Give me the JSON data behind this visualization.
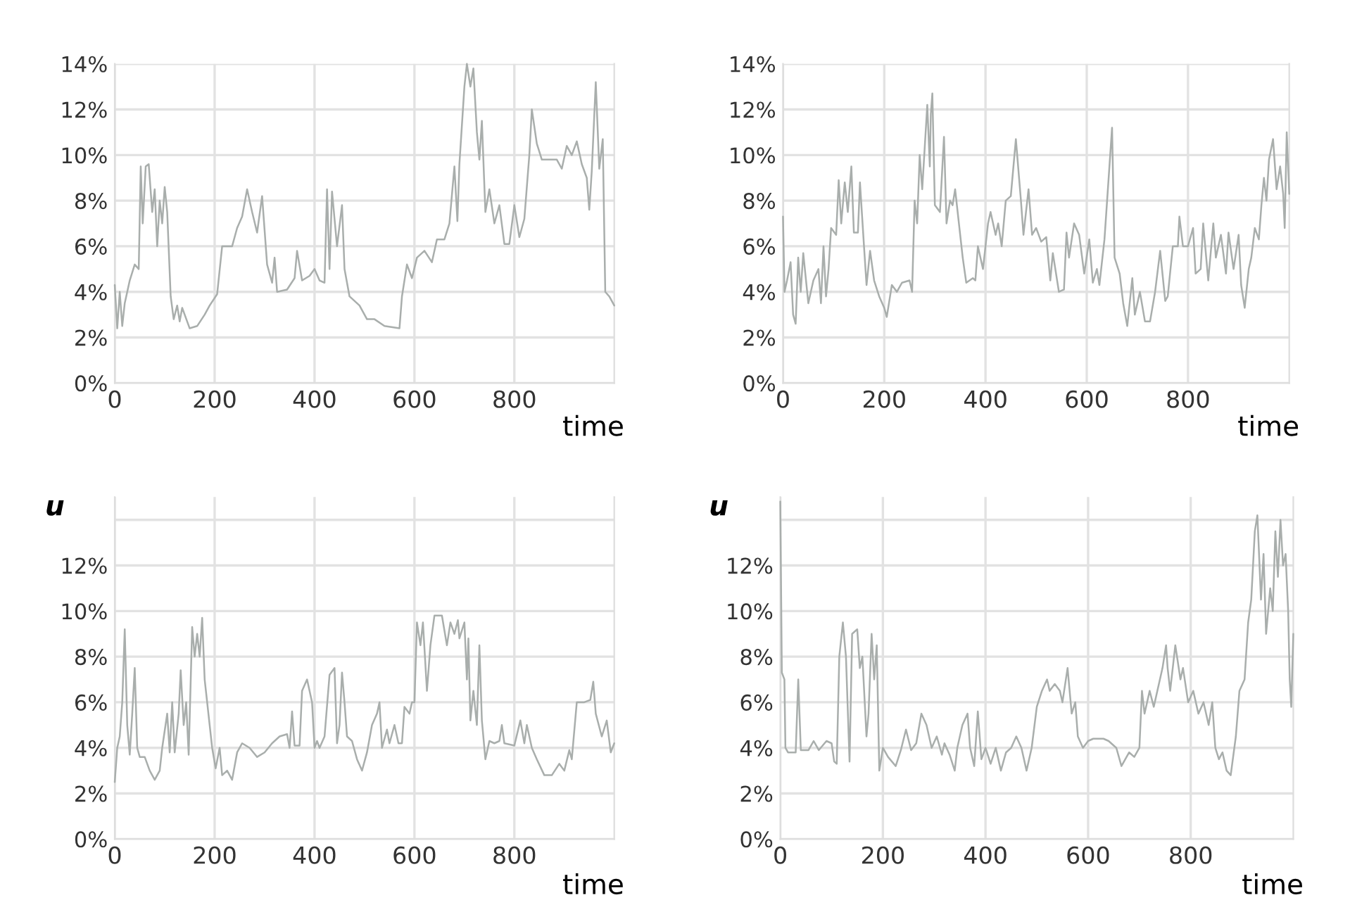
{
  "chart_data": [
    {
      "type": "line",
      "xlabel": "time",
      "color": "#a9aeac",
      "grid": true,
      "xlim": [
        0,
        1000
      ],
      "xticks": [
        0,
        200,
        400,
        600,
        800
      ],
      "ylim": [
        0,
        14
      ],
      "yticks": [
        {
          "value": 0,
          "label": "0%"
        },
        {
          "value": 2,
          "label": "2%"
        },
        {
          "value": 4,
          "label": "4%"
        },
        {
          "value": 6,
          "label": "6%"
        },
        {
          "value": 8,
          "label": "8%"
        },
        {
          "value": 10,
          "label": "10%"
        },
        {
          "value": 12,
          "label": "12%"
        },
        {
          "value": 14,
          "label": "14%"
        }
      ],
      "x": [
        0,
        5,
        10,
        15,
        20,
        30,
        40,
        48,
        52,
        56,
        62,
        68,
        75,
        80,
        85,
        90,
        95,
        100,
        105,
        112,
        118,
        125,
        130,
        135,
        150,
        165,
        180,
        190,
        205,
        215,
        235,
        245,
        255,
        265,
        275,
        285,
        295,
        305,
        315,
        320,
        325,
        345,
        360,
        365,
        375,
        390,
        400,
        410,
        420,
        425,
        430,
        435,
        445,
        455,
        460,
        470,
        490,
        505,
        520,
        540,
        570,
        575,
        585,
        595,
        605,
        620,
        635,
        645,
        660,
        670,
        680,
        686,
        690,
        700,
        705,
        712,
        718,
        725,
        730,
        735,
        742,
        750,
        760,
        770,
        780,
        790,
        800,
        810,
        820,
        830,
        835,
        845,
        855,
        870,
        885,
        895,
        905,
        915,
        925,
        935,
        945,
        950,
        955,
        963,
        970,
        977,
        982,
        990,
        1000
      ],
      "values": [
        4.3,
        2.4,
        4.0,
        2.5,
        3.5,
        4.5,
        5.2,
        5.0,
        9.5,
        7.0,
        9.5,
        9.6,
        7.5,
        8.5,
        6.0,
        8.0,
        7.0,
        8.6,
        7.5,
        3.8,
        2.8,
        3.4,
        2.7,
        3.3,
        2.4,
        2.5,
        3.0,
        3.4,
        3.9,
        6.0,
        6.0,
        6.8,
        7.3,
        8.5,
        7.5,
        6.6,
        8.2,
        5.2,
        4.4,
        5.5,
        4.0,
        4.1,
        4.6,
        5.8,
        4.5,
        4.7,
        5.0,
        4.5,
        4.4,
        8.5,
        5.0,
        8.4,
        6.0,
        7.8,
        5.0,
        3.8,
        3.4,
        2.8,
        2.8,
        2.5,
        2.4,
        3.8,
        5.2,
        4.6,
        5.5,
        5.8,
        5.3,
        6.3,
        6.3,
        7.0,
        9.5,
        7.1,
        9.6,
        13.0,
        14.0,
        13.0,
        13.8,
        11.0,
        9.8,
        11.5,
        7.5,
        8.5,
        7.0,
        7.8,
        6.1,
        6.1,
        7.8,
        6.4,
        7.2,
        10.0,
        12.0,
        10.5,
        9.8,
        9.8,
        9.8,
        9.4,
        10.4,
        10.0,
        10.6,
        9.6,
        9.0,
        7.6,
        9.3,
        13.2,
        9.4,
        10.7,
        4.0,
        3.8,
        3.4
      ]
    },
    {
      "type": "line",
      "xlabel": "time",
      "color": "#a9aeac",
      "grid": true,
      "xlim": [
        0,
        1000
      ],
      "xticks": [
        0,
        200,
        400,
        600,
        800
      ],
      "ylim": [
        0,
        14
      ],
      "yticks": [
        {
          "value": 0,
          "label": "0%"
        },
        {
          "value": 2,
          "label": "2%"
        },
        {
          "value": 4,
          "label": "4%"
        },
        {
          "value": 6,
          "label": "6%"
        },
        {
          "value": 8,
          "label": "8%"
        },
        {
          "value": 10,
          "label": "10%"
        },
        {
          "value": 12,
          "label": "12%"
        },
        {
          "value": 14,
          "label": "14%"
        }
      ],
      "x": [
        0,
        3,
        8,
        15,
        20,
        25,
        30,
        35,
        40,
        50,
        60,
        70,
        75,
        80,
        85,
        90,
        95,
        105,
        110,
        115,
        122,
        128,
        135,
        140,
        148,
        152,
        160,
        165,
        172,
        180,
        190,
        200,
        205,
        215,
        225,
        235,
        250,
        255,
        260,
        265,
        270,
        275,
        285,
        290,
        292,
        295,
        300,
        310,
        318,
        323,
        330,
        335,
        340,
        345,
        355,
        362,
        375,
        380,
        385,
        395,
        405,
        410,
        420,
        425,
        432,
        440,
        450,
        460,
        470,
        475,
        485,
        492,
        500,
        510,
        520,
        528,
        533,
        545,
        555,
        560,
        565,
        575,
        585,
        595,
        605,
        612,
        620,
        625,
        635,
        650,
        655,
        665,
        672,
        680,
        690,
        695,
        705,
        715,
        725,
        735,
        745,
        755,
        760,
        770,
        780,
        783,
        790,
        800,
        810,
        815,
        825,
        830,
        840,
        850,
        855,
        865,
        875,
        880,
        890,
        900,
        905,
        912,
        920,
        925,
        932,
        940,
        945,
        950,
        955,
        960,
        968,
        975,
        982,
        988,
        991,
        995,
        1000
      ],
      "values": [
        7.3,
        4.0,
        4.5,
        5.3,
        3.0,
        2.6,
        5.5,
        4.0,
        5.7,
        3.5,
        4.5,
        5.0,
        3.5,
        6.0,
        3.8,
        5.0,
        6.8,
        6.5,
        8.9,
        7.0,
        8.8,
        7.5,
        9.5,
        6.6,
        6.6,
        8.8,
        6.0,
        4.3,
        5.8,
        4.5,
        3.8,
        3.3,
        2.9,
        4.3,
        4.0,
        4.4,
        4.5,
        4.0,
        8.0,
        7.0,
        10.0,
        8.5,
        12.2,
        9.5,
        11.8,
        12.7,
        7.8,
        7.5,
        10.8,
        7.0,
        8.0,
        7.8,
        8.5,
        7.5,
        5.5,
        4.4,
        4.6,
        4.5,
        6.0,
        5.0,
        7.0,
        7.5,
        6.5,
        7.0,
        6.0,
        8.0,
        8.2,
        10.7,
        8.0,
        6.5,
        8.5,
        6.5,
        6.8,
        6.2,
        6.4,
        4.5,
        5.7,
        4.0,
        4.1,
        6.6,
        5.5,
        7.0,
        6.5,
        4.8,
        6.3,
        4.4,
        5.0,
        4.3,
        6.3,
        11.2,
        5.5,
        4.8,
        3.5,
        2.5,
        4.6,
        3.0,
        4.0,
        2.7,
        2.7,
        4.0,
        5.8,
        3.6,
        3.8,
        6.0,
        6.0,
        7.3,
        6.0,
        6.0,
        6.8,
        4.8,
        5.0,
        7.0,
        4.5,
        7.0,
        5.5,
        6.5,
        4.8,
        6.6,
        5.0,
        6.5,
        4.3,
        3.3,
        5.0,
        5.5,
        6.8,
        6.3,
        7.8,
        9.0,
        8.0,
        9.8,
        10.7,
        8.5,
        9.5,
        8.3,
        6.8,
        11.0,
        8.3
      ]
    },
    {
      "type": "line",
      "xlabel": "time",
      "ylabel": "u",
      "color": "#a9aeac",
      "grid": true,
      "xlim": [
        0,
        1000
      ],
      "xticks": [
        0,
        200,
        400,
        600,
        800
      ],
      "ylim": [
        0,
        15
      ],
      "yticks": [
        {
          "value": 0,
          "label": "0%"
        },
        {
          "value": 2,
          "label": "2%"
        },
        {
          "value": 4,
          "label": "4%"
        },
        {
          "value": 6,
          "label": "6%"
        },
        {
          "value": 8,
          "label": "8%"
        },
        {
          "value": 10,
          "label": "10%"
        },
        {
          "value": 12,
          "label": "12%"
        },
        {
          "value": 14,
          "label": null
        }
      ],
      "x": [
        0,
        5,
        10,
        15,
        20,
        25,
        30,
        35,
        40,
        45,
        50,
        60,
        70,
        80,
        90,
        95,
        105,
        110,
        115,
        120,
        128,
        132,
        138,
        143,
        148,
        155,
        160,
        165,
        170,
        175,
        180,
        185,
        195,
        202,
        210,
        215,
        225,
        235,
        245,
        255,
        270,
        285,
        300,
        315,
        330,
        345,
        350,
        355,
        360,
        370,
        375,
        385,
        395,
        400,
        405,
        410,
        420,
        430,
        440,
        445,
        450,
        455,
        460,
        465,
        475,
        485,
        495,
        505,
        515,
        525,
        530,
        535,
        545,
        550,
        560,
        568,
        575,
        580,
        590,
        595,
        600,
        605,
        612,
        617,
        625,
        632,
        640,
        655,
        665,
        672,
        680,
        687,
        690,
        700,
        705,
        708,
        712,
        718,
        725,
        730,
        735,
        742,
        750,
        760,
        770,
        775,
        780,
        800,
        812,
        820,
        825,
        835,
        845,
        860,
        875,
        890,
        900,
        910,
        915,
        925,
        940,
        952,
        958,
        963,
        975,
        985,
        993,
        1000
      ],
      "values": [
        2.5,
        4.0,
        4.5,
        6.0,
        9.2,
        5.0,
        3.7,
        5.5,
        7.5,
        4.0,
        3.6,
        3.6,
        3.0,
        2.6,
        3.0,
        4.0,
        5.5,
        3.8,
        6.0,
        3.8,
        5.5,
        7.4,
        5.0,
        6.0,
        3.7,
        9.3,
        8.0,
        9.0,
        8.0,
        9.7,
        7.0,
        6.0,
        4.0,
        3.1,
        4.0,
        2.8,
        3.0,
        2.6,
        3.8,
        4.2,
        4.0,
        3.6,
        3.8,
        4.2,
        4.5,
        4.6,
        4.0,
        5.6,
        4.1,
        4.1,
        6.5,
        7.0,
        6.0,
        4.0,
        4.3,
        4.0,
        4.5,
        7.2,
        7.5,
        4.2,
        5.0,
        7.3,
        6.0,
        4.5,
        4.3,
        3.5,
        3.0,
        3.8,
        5.0,
        5.5,
        6.0,
        4.0,
        4.8,
        4.2,
        5.0,
        4.2,
        4.2,
        5.8,
        5.5,
        6.0,
        6.0,
        9.5,
        8.5,
        9.5,
        6.5,
        8.5,
        9.8,
        9.8,
        8.5,
        9.5,
        9.0,
        9.6,
        8.8,
        9.5,
        7.0,
        8.8,
        5.2,
        6.5,
        5.0,
        8.5,
        5.2,
        3.5,
        4.3,
        4.2,
        4.3,
        5.0,
        4.2,
        4.1,
        5.2,
        4.2,
        5.0,
        4.0,
        3.5,
        2.8,
        2.8,
        3.3,
        3.0,
        3.9,
        3.5,
        6.0,
        6.0,
        6.1,
        6.9,
        5.5,
        4.5,
        5.2,
        3.8,
        4.2
      ]
    },
    {
      "type": "line",
      "xlabel": "time",
      "ylabel": "u",
      "color": "#a9aeac",
      "grid": true,
      "xlim": [
        0,
        1000
      ],
      "xticks": [
        0,
        200,
        400,
        600,
        800
      ],
      "ylim": [
        0,
        15
      ],
      "yticks": [
        {
          "value": 0,
          "label": "0%"
        },
        {
          "value": 2,
          "label": "2%"
        },
        {
          "value": 4,
          "label": "4%"
        },
        {
          "value": 6,
          "label": "6%"
        },
        {
          "value": 8,
          "label": "8%"
        },
        {
          "value": 10,
          "label": "10%"
        },
        {
          "value": 12,
          "label": "12%"
        },
        {
          "value": 14,
          "label": null
        }
      ],
      "x": [
        0,
        3,
        8,
        10,
        15,
        30,
        35,
        40,
        55,
        65,
        75,
        90,
        100,
        105,
        110,
        115,
        122,
        128,
        135,
        140,
        150,
        155,
        160,
        168,
        172,
        178,
        183,
        188,
        193,
        200,
        210,
        225,
        235,
        245,
        255,
        265,
        275,
        285,
        295,
        305,
        315,
        320,
        330,
        340,
        345,
        355,
        365,
        370,
        378,
        385,
        392,
        400,
        410,
        420,
        430,
        440,
        450,
        460,
        470,
        480,
        490,
        500,
        510,
        520,
        525,
        535,
        545,
        550,
        560,
        568,
        575,
        580,
        590,
        600,
        610,
        630,
        640,
        655,
        665,
        680,
        690,
        700,
        705,
        710,
        720,
        728,
        735,
        745,
        752,
        755,
        760,
        770,
        780,
        785,
        795,
        805,
        815,
        825,
        835,
        842,
        848,
        855,
        862,
        870,
        878,
        888,
        895,
        905,
        912,
        918,
        925,
        930,
        937,
        942,
        947,
        955,
        960,
        965,
        970,
        975,
        980,
        985,
        990,
        993,
        996,
        1000
      ],
      "values": [
        14.8,
        7.3,
        7.0,
        4.0,
        3.8,
        3.8,
        7.0,
        3.9,
        3.9,
        4.3,
        3.9,
        4.3,
        4.2,
        3.4,
        3.3,
        8.0,
        9.5,
        8.0,
        3.4,
        9.0,
        9.2,
        7.5,
        8.0,
        4.5,
        5.5,
        9.0,
        7.0,
        8.5,
        3.0,
        4.0,
        3.6,
        3.2,
        3.9,
        4.8,
        3.9,
        4.2,
        5.5,
        5.0,
        4.0,
        4.5,
        3.7,
        4.2,
        3.7,
        3.0,
        4.0,
        5.0,
        5.5,
        4.0,
        3.2,
        5.6,
        3.5,
        4.0,
        3.3,
        4.0,
        3.0,
        3.8,
        4.0,
        4.5,
        4.0,
        3.0,
        4.0,
        5.8,
        6.5,
        7.0,
        6.5,
        6.8,
        6.5,
        6.0,
        7.5,
        5.5,
        6.0,
        4.5,
        4.0,
        4.3,
        4.4,
        4.4,
        4.3,
        4.0,
        3.2,
        3.8,
        3.6,
        4.0,
        6.5,
        5.5,
        6.5,
        5.8,
        6.5,
        7.5,
        8.5,
        7.5,
        6.5,
        8.5,
        7.0,
        7.5,
        6.0,
        6.5,
        5.5,
        6.0,
        5.0,
        6.0,
        4.0,
        3.5,
        3.8,
        3.0,
        2.8,
        4.5,
        6.5,
        7.0,
        9.5,
        10.5,
        13.5,
        14.2,
        10.5,
        12.5,
        9.0,
        11.0,
        10.0,
        13.5,
        11.5,
        14.0,
        12.0,
        12.5,
        10.0,
        7.0,
        5.8,
        9.0
      ]
    }
  ]
}
